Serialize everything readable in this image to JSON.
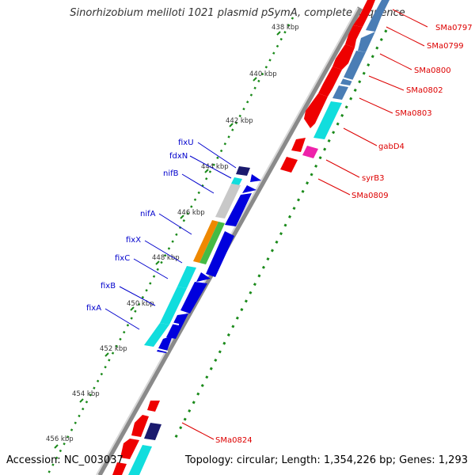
{
  "title": "Sinorhizobium meliloti 1021 plasmid pSymA, complete sequence",
  "footer": {
    "accession": "Accession: NC_003037",
    "topology": "Topology: circular; Length: 1,354,226 bp; Genes: 1,293"
  },
  "ticks": [
    "438 kbp",
    "440 kbp",
    "442 kbp",
    "444 kbp",
    "446 kbp",
    "448 kbp",
    "450 kbp",
    "452 kbp",
    "454 kbp",
    "456 kbp"
  ],
  "genes_left": [
    "fixU",
    "fdxN",
    "nifB",
    "nifA",
    "fixX",
    "fixC",
    "fixB",
    "fixA"
  ],
  "genes_right": [
    "SMa0797",
    "SMa0799",
    "SMa0800",
    "SMa0802",
    "SMa0803",
    "gabD4",
    "syrB3",
    "SMa0809",
    "SMa0824"
  ],
  "colors": {
    "left_label": "#0000cc",
    "right_label": "#dd0000",
    "backbone": "#8a8a8a",
    "gc_dots": "#1a8a1a",
    "cds_forward": "#0000dd",
    "cds_reverse": "#ee0000",
    "cyan": "#11dddd",
    "steelblue": "#4a7db5",
    "grey": "#c8c8c8",
    "orange": "#ee8800",
    "green": "#44bb44",
    "magenta": "#ee22aa",
    "navy": "#1a1a6e"
  }
}
